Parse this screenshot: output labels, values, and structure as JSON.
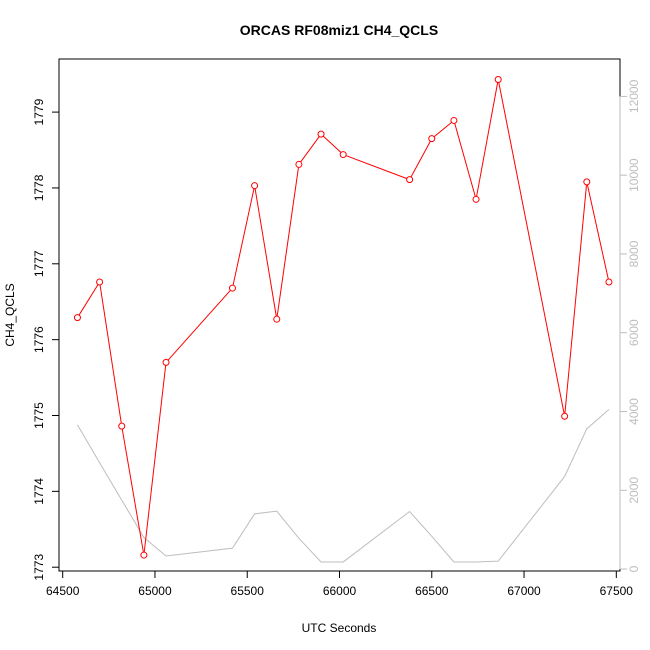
{
  "chart_data": {
    "type": "line",
    "title": "ORCAS RF08miz1 CH4_QCLS",
    "xlabel": "UTC Seconds",
    "ylabel": "CH4_QCLS",
    "xlim": [
      64480,
      67520
    ],
    "ylim": [
      1772.95,
      1779.7
    ],
    "y2lim": [
      -50,
      12950
    ],
    "x_ticks": [
      64500,
      65000,
      65500,
      66000,
      66500,
      67000,
      67500
    ],
    "y_ticks": [
      1773,
      1774,
      1775,
      1776,
      1777,
      1778,
      1779
    ],
    "y2_ticks": [
      0,
      2000,
      4000,
      6000,
      8000,
      10000,
      12000
    ],
    "series": [
      {
        "color": "#ff0000",
        "axis": "left",
        "markers": "open-circle",
        "x": [
          64580,
          64700,
          64820,
          64940,
          65060,
          65420,
          65540,
          65660,
          65780,
          65900,
          66020,
          66380,
          66500,
          66620,
          66740,
          66860,
          67220,
          67340,
          67460
        ],
        "y": [
          1776.29,
          1776.76,
          1774.86,
          1773.16,
          1775.7,
          1776.68,
          1778.03,
          1776.27,
          1778.31,
          1778.71,
          1778.44,
          1778.11,
          1778.65,
          1778.89,
          1777.85,
          1779.43,
          1774.99,
          1778.08,
          1776.76
        ]
      },
      {
        "color": "#bdbdbd",
        "axis": "right",
        "markers": "none",
        "x": [
          64580,
          64700,
          64820,
          64940,
          65060,
          65420,
          65540,
          65660,
          65780,
          65900,
          66020,
          66380,
          66500,
          66620,
          66740,
          66860,
          67220,
          67340,
          67460
        ],
        "y": [
          3660,
          2700,
          1750,
          800,
          330,
          530,
          1400,
          1470,
          780,
          180,
          180,
          1460,
          830,
          180,
          180,
          200,
          2350,
          3560,
          4050
        ]
      }
    ]
  }
}
